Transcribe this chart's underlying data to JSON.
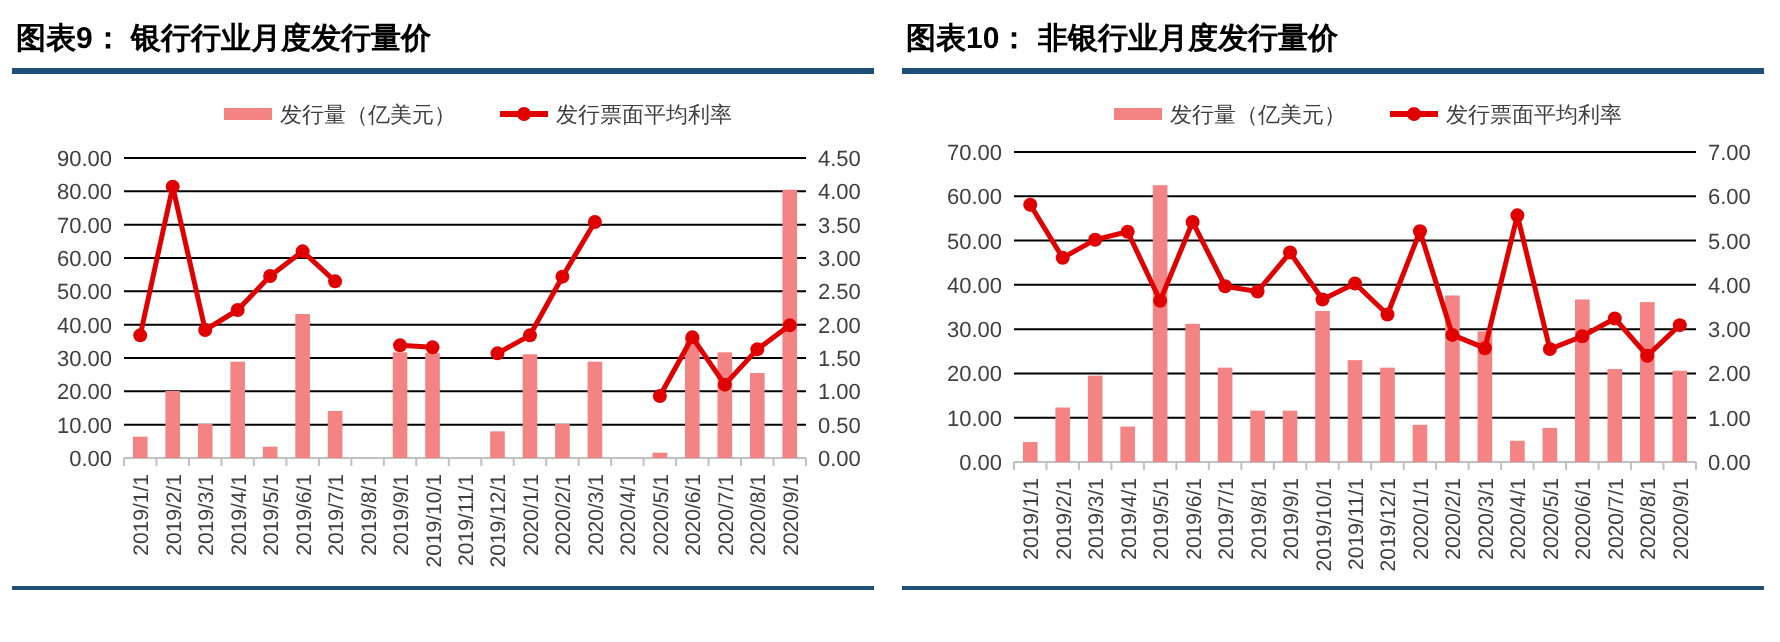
{
  "chart_data": [
    {
      "type": "bar",
      "title": "图表9：  银行行业月度发行量价",
      "categories": [
        "2019/1/1",
        "2019/2/1",
        "2019/3/1",
        "2019/4/1",
        "2019/5/1",
        "2019/6/1",
        "2019/7/1",
        "2019/8/1",
        "2019/9/1",
        "2019/10/1",
        "2019/11/1",
        "2019/12/1",
        "2020/1/1",
        "2020/2/1",
        "2020/3/1",
        "2020/4/1",
        "2020/5/1",
        "2020/6/1",
        "2020/7/1",
        "2020/8/1",
        "2020/9/1"
      ],
      "series": [
        {
          "name": "发行量（亿美元）",
          "color": "#f48383",
          "values": [
            6.4,
            20.1,
            10.2,
            28.9,
            3.4,
            43.2,
            14.1,
            null,
            31.7,
            31.5,
            null,
            8.0,
            31.1,
            10.2,
            28.9,
            null,
            1.6,
            36.0,
            31.7,
            25.5,
            80.5
          ]
        },
        {
          "name": "发行票面平均利率",
          "type": "line",
          "axis": "y2",
          "color": "#e00000",
          "values": [
            1.84,
            4.07,
            1.92,
            2.22,
            2.73,
            3.1,
            2.65,
            null,
            1.69,
            1.66,
            null,
            1.57,
            1.84,
            2.72,
            3.54,
            null,
            0.93,
            1.81,
            1.1,
            1.63,
            1.99
          ]
        }
      ],
      "ylim": [
        0,
        90
      ],
      "yticks": [
        {
          "value": 0,
          "label": "0.00"
        },
        {
          "value": 10,
          "label": "10.00"
        },
        {
          "value": 20,
          "label": "20.00"
        },
        {
          "value": 30,
          "label": "30.00"
        },
        {
          "value": 40,
          "label": "40.00"
        },
        {
          "value": 50,
          "label": "50.00"
        },
        {
          "value": 60,
          "label": "60.00"
        },
        {
          "value": 70,
          "label": "70.00"
        },
        {
          "value": 80,
          "label": "80.00"
        },
        {
          "value": 90,
          "label": "90.00"
        }
      ],
      "y2lim": [
        0,
        4.5
      ],
      "y2ticks": [
        {
          "value": 0,
          "label": "0.00"
        },
        {
          "value": 0.5,
          "label": "0.50"
        },
        {
          "value": 1,
          "label": "1.00"
        },
        {
          "value": 1.5,
          "label": "1.50"
        },
        {
          "value": 2,
          "label": "2.00"
        },
        {
          "value": 2.5,
          "label": "2.50"
        },
        {
          "value": 3,
          "label": "3.00"
        },
        {
          "value": 3.5,
          "label": "3.50"
        },
        {
          "value": 4,
          "label": "4.00"
        },
        {
          "value": 4.5,
          "label": "4.50"
        }
      ],
      "grid": "y",
      "legend": "top",
      "marker": "circle"
    },
    {
      "type": "bar",
      "title": "图表10：  非银行业月度发行量价",
      "categories": [
        "2019/1/1",
        "2019/2/1",
        "2019/3/1",
        "2019/4/1",
        "2019/5/1",
        "2019/6/1",
        "2019/7/1",
        "2019/8/1",
        "2019/9/1",
        "2019/10/1",
        "2019/11/1",
        "2019/12/1",
        "2020/1/1",
        "2020/2/1",
        "2020/3/1",
        "2020/4/1",
        "2020/5/1",
        "2020/6/1",
        "2020/7/1",
        "2020/8/1",
        "2020/9/1"
      ],
      "series": [
        {
          "name": "发行量（亿美元）",
          "color": "#f48383",
          "values": [
            4.5,
            12.3,
            19.5,
            8.0,
            62.5,
            31.2,
            21.3,
            11.6,
            11.6,
            34.1,
            23.0,
            21.3,
            8.4,
            37.6,
            29.5,
            4.8,
            7.7,
            36.7,
            21.0,
            36.1,
            20.6
          ]
        },
        {
          "name": "发行票面平均利率",
          "type": "line",
          "axis": "y2",
          "color": "#e00000",
          "values": [
            5.81,
            4.61,
            5.02,
            5.2,
            3.64,
            5.42,
            3.97,
            3.85,
            4.73,
            3.67,
            4.03,
            3.33,
            5.21,
            2.87,
            2.57,
            5.57,
            2.55,
            2.84,
            3.24,
            2.4,
            3.09
          ]
        }
      ],
      "ylim": [
        0,
        70
      ],
      "yticks": [
        {
          "value": 0,
          "label": "0.00"
        },
        {
          "value": 10,
          "label": "10.00"
        },
        {
          "value": 20,
          "label": "20.00"
        },
        {
          "value": 30,
          "label": "30.00"
        },
        {
          "value": 40,
          "label": "40.00"
        },
        {
          "value": 50,
          "label": "50.00"
        },
        {
          "value": 60,
          "label": "60.00"
        },
        {
          "value": 70,
          "label": "70.00"
        }
      ],
      "y2lim": [
        0,
        7
      ],
      "y2ticks": [
        {
          "value": 0,
          "label": "0.00"
        },
        {
          "value": 1,
          "label": "1.00"
        },
        {
          "value": 2,
          "label": "2.00"
        },
        {
          "value": 3,
          "label": "3.00"
        },
        {
          "value": 4,
          "label": "4.00"
        },
        {
          "value": 5,
          "label": "5.00"
        },
        {
          "value": 6,
          "label": "6.00"
        },
        {
          "value": 7,
          "label": "7.00"
        }
      ],
      "grid": "y",
      "legend": "top",
      "marker": "circle"
    }
  ]
}
